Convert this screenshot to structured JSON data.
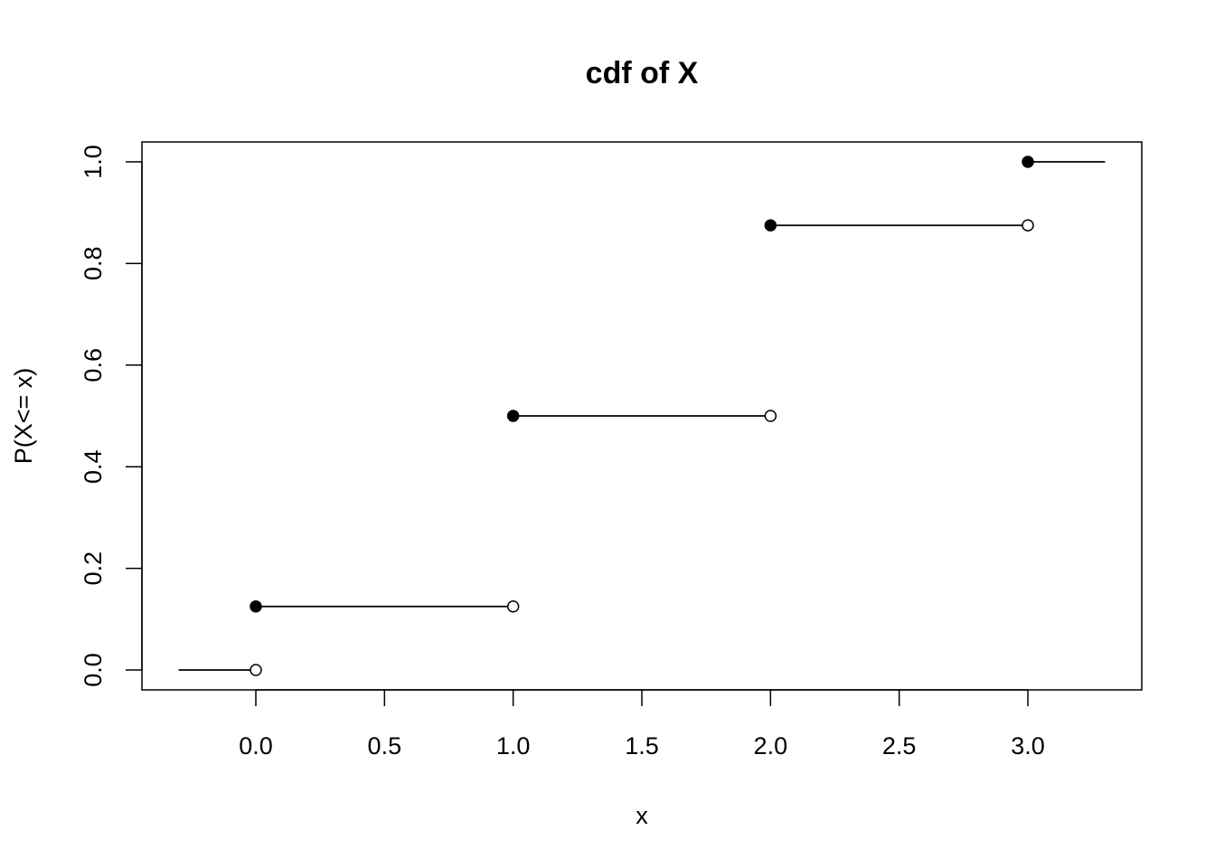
{
  "chart_data": {
    "type": "step",
    "title": "cdf of X",
    "xlabel": "x",
    "ylabel": "P(X<= x)",
    "xlim": [
      -0.3,
      3.3
    ],
    "ylim": [
      0,
      1
    ],
    "x_ticks": [
      "0.0",
      "0.5",
      "1.0",
      "1.5",
      "2.0",
      "2.5",
      "3.0"
    ],
    "y_ticks": [
      "0.0",
      "0.2",
      "0.4",
      "0.6",
      "0.8",
      "1.0"
    ],
    "segments": [
      {
        "x0": -0.3,
        "x1": 0,
        "y": 0,
        "closed_start": false,
        "open_end": true
      },
      {
        "x0": 0,
        "x1": 1,
        "y": 0.125,
        "closed_start": true,
        "open_end": true
      },
      {
        "x0": 1,
        "x1": 2,
        "y": 0.5,
        "closed_start": true,
        "open_end": true
      },
      {
        "x0": 2,
        "x1": 3,
        "y": 0.875,
        "closed_start": true,
        "open_end": true
      },
      {
        "x0": 3,
        "x1": 3.3,
        "y": 1,
        "closed_start": true,
        "open_end": false
      }
    ],
    "grid": false,
    "legend": "none",
    "colors": {
      "line": "#000000",
      "closed_point": "#000000",
      "open_point_fill": "#ffffff"
    }
  }
}
